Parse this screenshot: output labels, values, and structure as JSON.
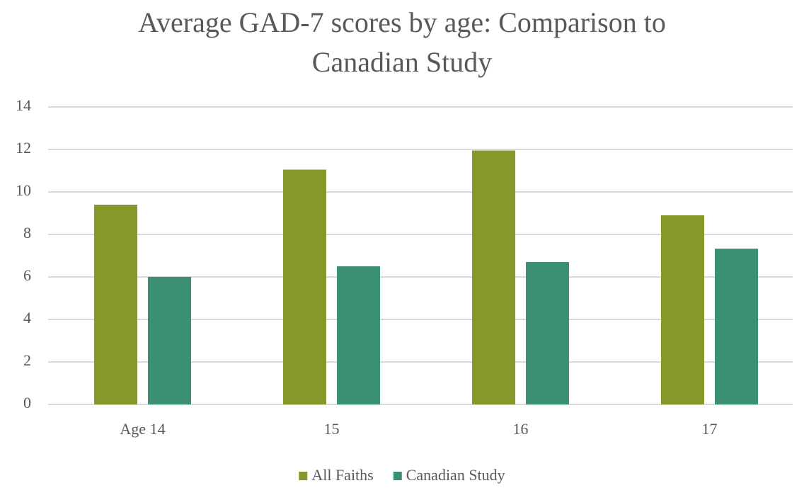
{
  "chart_data": {
    "type": "bar",
    "title": "Average GAD-7 scores by age: Comparison to Canadian Study",
    "categories": [
      "Age 14",
      "15",
      "16",
      "17"
    ],
    "series": [
      {
        "name": "All Faiths",
        "color": "#84992a",
        "values": [
          9.4,
          11.05,
          11.95,
          8.9
        ]
      },
      {
        "name": "Canadian Study",
        "color": "#3a9070",
        "values": [
          6.0,
          6.5,
          6.7,
          7.33
        ]
      }
    ],
    "ylim": [
      0,
      14
    ],
    "yticks": [
      0,
      2,
      4,
      6,
      8,
      10,
      12,
      14
    ],
    "grid": true,
    "legend": "bottom"
  }
}
